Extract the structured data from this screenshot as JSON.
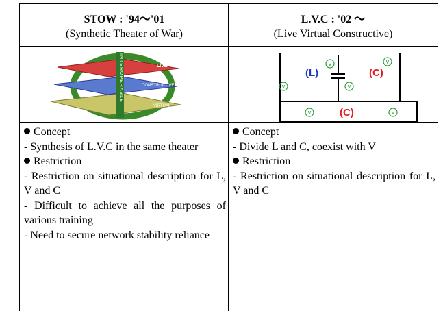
{
  "columns": [
    {
      "header": {
        "title": "STOW : '94～'01",
        "subtitle": "(Synthetic Theater of War)"
      },
      "figure": {
        "labels": [
          "INTEROPERABLE",
          "LIVE",
          "CONSTRUCTIVE",
          "VIRTUAL"
        ]
      },
      "content": [
        {
          "bullet": "Concept"
        },
        {
          "text": "- Synthesis of L.V.C in the same theater"
        },
        {
          "bullet": "Restriction"
        },
        {
          "text": "- Restriction on situational description for L, V and C"
        },
        {
          "text": "- Difficult to achieve all the purposes of various training"
        },
        {
          "text": "- Need to secure network stability reliance"
        }
      ]
    },
    {
      "header": {
        "title": "L.V.C : '02 ～",
        "subtitle": "(Live Virtual Constructive)"
      },
      "figure": {
        "labels": [
          "(L)",
          "(C)",
          "(C)",
          "v",
          "v",
          "v",
          "v",
          "v",
          "v"
        ]
      },
      "content": [
        {
          "bullet": "Concept"
        },
        {
          "text": "- Divide L and C, coexist with V"
        },
        {
          "bullet": "Restriction"
        },
        {
          "text": "- Restriction on situational description for L, V and C"
        }
      ]
    }
  ]
}
